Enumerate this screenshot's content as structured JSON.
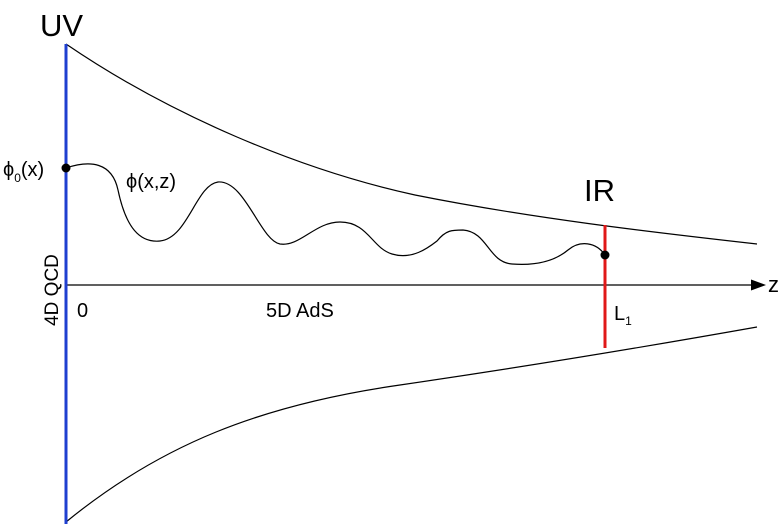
{
  "labels": {
    "uv": "UV",
    "ir": "IR",
    "boundary_field_main": "ϕ",
    "boundary_field_sub": "0",
    "boundary_field_args": "(x)",
    "bulk_field": "ϕ(x,z)",
    "origin": "0",
    "bulk_space": "5D AdS",
    "cutoff_main": "L",
    "cutoff_sub": "1",
    "axis_variable": "z",
    "boundary_theory": "4D QCD"
  },
  "colors": {
    "uv_brane": "#1f3fd0",
    "ir_brane": "#e01818",
    "ink": "#000000"
  }
}
